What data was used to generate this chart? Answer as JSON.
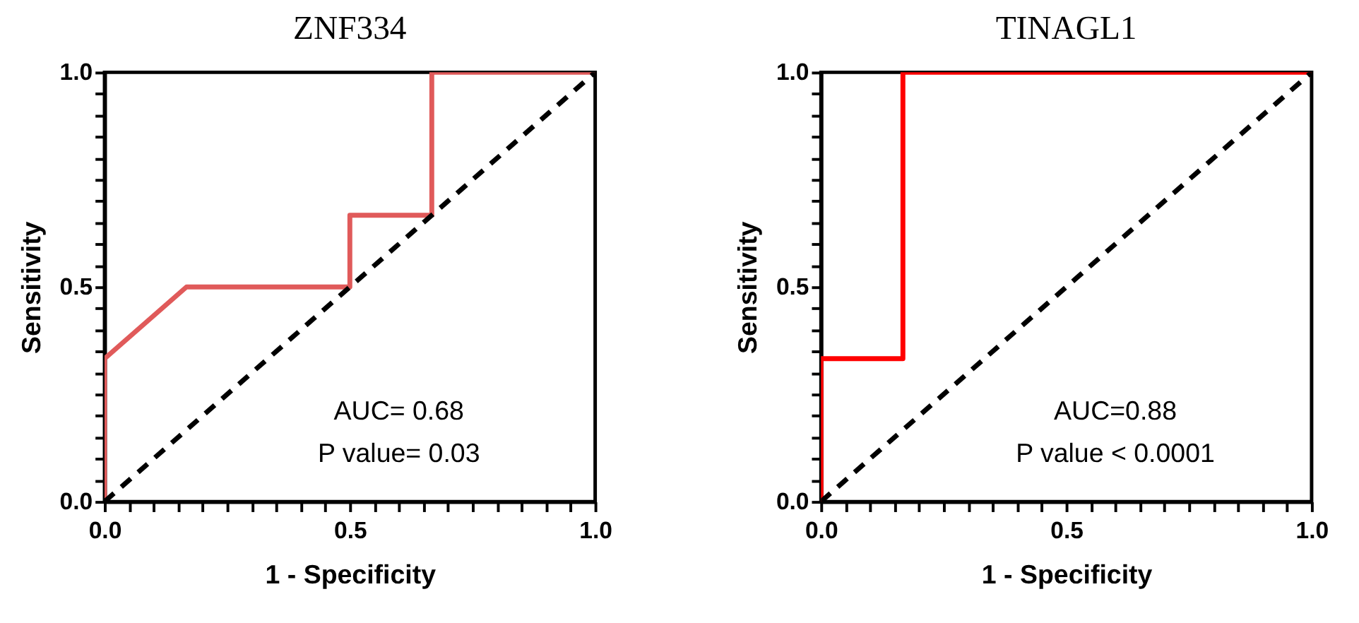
{
  "chart_data": [
    {
      "type": "line",
      "title": "ZNF334",
      "xlabel": "1 - Specificity",
      "ylabel": "Sensitivity",
      "series": [
        {
          "color": "#e05a5a",
          "x": [
            0,
            0,
            0.167,
            0.5,
            0.5,
            0.667,
            0.667,
            1
          ],
          "values": [
            0,
            0.333,
            0.5,
            0.5,
            0.667,
            0.667,
            1,
            1
          ],
          "line_style": "solid"
        },
        {
          "color": "#000000",
          "x": [
            0,
            1
          ],
          "values": [
            0,
            1
          ],
          "line_style": "dashed"
        }
      ],
      "xlim": [
        0,
        1
      ],
      "ylim": [
        0,
        1
      ],
      "xticks": [
        {
          "value": 0,
          "label": "0.0"
        },
        {
          "value": 0.05,
          "label": null
        },
        {
          "value": 0.1,
          "label": null
        },
        {
          "value": 0.15,
          "label": null
        },
        {
          "value": 0.2,
          "label": null
        },
        {
          "value": 0.25,
          "label": null
        },
        {
          "value": 0.3,
          "label": null
        },
        {
          "value": 0.35,
          "label": null
        },
        {
          "value": 0.4,
          "label": null
        },
        {
          "value": 0.45,
          "label": null
        },
        {
          "value": 0.5,
          "label": "0.5"
        },
        {
          "value": 0.55,
          "label": null
        },
        {
          "value": 0.6,
          "label": null
        },
        {
          "value": 0.65,
          "label": null
        },
        {
          "value": 0.7,
          "label": null
        },
        {
          "value": 0.75,
          "label": null
        },
        {
          "value": 0.8,
          "label": null
        },
        {
          "value": 0.85,
          "label": null
        },
        {
          "value": 0.9,
          "label": null
        },
        {
          "value": 0.95,
          "label": null
        },
        {
          "value": 1,
          "label": "1.0"
        }
      ],
      "yticks": [
        {
          "value": 0,
          "label": "0.0"
        },
        {
          "value": 0.05,
          "label": null
        },
        {
          "value": 0.1,
          "label": null
        },
        {
          "value": 0.15,
          "label": null
        },
        {
          "value": 0.2,
          "label": null
        },
        {
          "value": 0.25,
          "label": null
        },
        {
          "value": 0.3,
          "label": null
        },
        {
          "value": 0.35,
          "label": null
        },
        {
          "value": 0.4,
          "label": null
        },
        {
          "value": 0.45,
          "label": null
        },
        {
          "value": 0.5,
          "label": "0.5"
        },
        {
          "value": 0.55,
          "label": null
        },
        {
          "value": 0.6,
          "label": null
        },
        {
          "value": 0.65,
          "label": null
        },
        {
          "value": 0.7,
          "label": null
        },
        {
          "value": 0.75,
          "label": null
        },
        {
          "value": 0.8,
          "label": null
        },
        {
          "value": 0.85,
          "label": null
        },
        {
          "value": 0.9,
          "label": null
        },
        {
          "value": 0.95,
          "label": null
        },
        {
          "value": 1,
          "label": "1.0"
        }
      ],
      "annotations": [
        "AUC= 0.68",
        "P value= 0.03"
      ],
      "grid": false,
      "legend": false,
      "marker": "none"
    },
    {
      "type": "line",
      "title": "TINAGL1",
      "xlabel": "1 - Specificity",
      "ylabel": "Sensitivity",
      "series": [
        {
          "color": "#ff0000",
          "x": [
            0,
            0,
            0.167,
            0.167,
            1
          ],
          "values": [
            0,
            0.333,
            0.333,
            1,
            1
          ],
          "line_style": "solid"
        },
        {
          "color": "#000000",
          "x": [
            0,
            1
          ],
          "values": [
            0,
            1
          ],
          "line_style": "dashed"
        }
      ],
      "xlim": [
        0,
        1
      ],
      "ylim": [
        0,
        1
      ],
      "xticks": [
        {
          "value": 0,
          "label": "0.0"
        },
        {
          "value": 0.05,
          "label": null
        },
        {
          "value": 0.1,
          "label": null
        },
        {
          "value": 0.15,
          "label": null
        },
        {
          "value": 0.2,
          "label": null
        },
        {
          "value": 0.25,
          "label": null
        },
        {
          "value": 0.3,
          "label": null
        },
        {
          "value": 0.35,
          "label": null
        },
        {
          "value": 0.4,
          "label": null
        },
        {
          "value": 0.45,
          "label": null
        },
        {
          "value": 0.5,
          "label": "0.5"
        },
        {
          "value": 0.55,
          "label": null
        },
        {
          "value": 0.6,
          "label": null
        },
        {
          "value": 0.65,
          "label": null
        },
        {
          "value": 0.7,
          "label": null
        },
        {
          "value": 0.75,
          "label": null
        },
        {
          "value": 0.8,
          "label": null
        },
        {
          "value": 0.85,
          "label": null
        },
        {
          "value": 0.9,
          "label": null
        },
        {
          "value": 0.95,
          "label": null
        },
        {
          "value": 1,
          "label": "1.0"
        }
      ],
      "yticks": [
        {
          "value": 0,
          "label": "0.0"
        },
        {
          "value": 0.05,
          "label": null
        },
        {
          "value": 0.1,
          "label": null
        },
        {
          "value": 0.15,
          "label": null
        },
        {
          "value": 0.2,
          "label": null
        },
        {
          "value": 0.25,
          "label": null
        },
        {
          "value": 0.3,
          "label": null
        },
        {
          "value": 0.35,
          "label": null
        },
        {
          "value": 0.4,
          "label": null
        },
        {
          "value": 0.45,
          "label": null
        },
        {
          "value": 0.5,
          "label": "0.5"
        },
        {
          "value": 0.55,
          "label": null
        },
        {
          "value": 0.6,
          "label": null
        },
        {
          "value": 0.65,
          "label": null
        },
        {
          "value": 0.7,
          "label": null
        },
        {
          "value": 0.75,
          "label": null
        },
        {
          "value": 0.8,
          "label": null
        },
        {
          "value": 0.85,
          "label": null
        },
        {
          "value": 0.9,
          "label": null
        },
        {
          "value": 0.95,
          "label": null
        },
        {
          "value": 1,
          "label": "1.0"
        }
      ],
      "annotations": [
        "AUC=0.88",
        "P value < 0.0001"
      ],
      "grid": false,
      "legend": false,
      "marker": "none"
    }
  ]
}
